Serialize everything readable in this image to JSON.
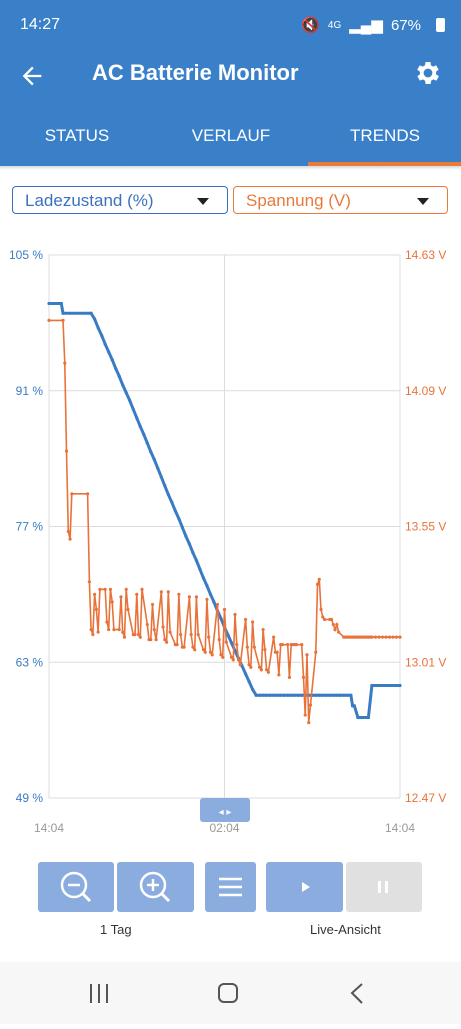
{
  "status": {
    "time": "14:27",
    "network": "4G",
    "battery": "67%"
  },
  "app": {
    "title": "AC Batterie Monitor"
  },
  "tabs": [
    {
      "label": "STATUS"
    },
    {
      "label": "VERLAUF"
    },
    {
      "label": "TRENDS"
    }
  ],
  "selects": {
    "left": "Ladezustand (%)",
    "right": "Spannung (V)"
  },
  "chart_data": {
    "type": "line",
    "x_ticks": [
      "14:04",
      "02:04",
      "14:04"
    ],
    "left_axis": {
      "ticks": [
        "105 %",
        "91 %",
        "77 %",
        "63 %",
        "49 %"
      ],
      "ylim": [
        49,
        105
      ]
    },
    "right_axis": {
      "ticks": [
        "14.63 V",
        "14.09 V",
        "13.55 V",
        "13.01 V",
        "12.47 V"
      ],
      "ylim": [
        12.47,
        14.63
      ]
    },
    "series": [
      {
        "axis": "left",
        "color": "#3a7cc3",
        "x": [
          0,
          3.5,
          4,
          12,
          13,
          14,
          15,
          16,
          17,
          18,
          19,
          20,
          21,
          22,
          23,
          24,
          25,
          26,
          27,
          28,
          29,
          30,
          31,
          32,
          33,
          34,
          35,
          36,
          37,
          38,
          39,
          40,
          41,
          42,
          43,
          44,
          45,
          46,
          47,
          48,
          49,
          50,
          51,
          52,
          53,
          54,
          55,
          56,
          57,
          58,
          59,
          60,
          61,
          62,
          63,
          64,
          65,
          66,
          67,
          68,
          69,
          70,
          71,
          72,
          73,
          74,
          75,
          76,
          77,
          78,
          79,
          80,
          81,
          82,
          83,
          84,
          85,
          86,
          86.5,
          87,
          88,
          88.5,
          89,
          91,
          92,
          100
        ],
        "values": [
          100,
          100,
          99,
          99,
          98.4,
          97.5,
          96.7,
          95.8,
          95,
          94.2,
          93.3,
          92.5,
          91.6,
          90.8,
          90,
          89.1,
          88.2,
          87.3,
          86.5,
          85.6,
          84.7,
          83.9,
          83,
          82.1,
          81.2,
          80.3,
          79.5,
          78.6,
          77.8,
          76.9,
          76,
          75.2,
          74.3,
          73.5,
          72.6,
          71.7,
          70.9,
          70,
          69.2,
          68.3,
          67.5,
          66.6,
          65.8,
          65,
          64.2,
          63.4,
          62.6,
          61.8,
          61,
          60.2,
          59.6,
          59.6,
          59.6,
          59.6,
          59.6,
          59.6,
          59.6,
          59.6,
          59.6,
          59.6,
          59.6,
          59.6,
          59.6,
          59.6,
          59.6,
          59.6,
          59.6,
          59.6,
          59.6,
          59.6,
          59.6,
          59.6,
          59.6,
          59.6,
          59.6,
          59.6,
          59.6,
          59.6,
          58.5,
          58.5,
          57.3,
          57.3,
          57.3,
          57.3,
          60.6,
          60.6
        ]
      },
      {
        "axis": "right",
        "color": "#e8733a",
        "x": [
          0,
          4,
          4.5,
          5,
          5.5,
          6,
          6.5,
          11,
          11.5,
          12,
          12.5,
          13,
          13.5,
          14,
          14.5,
          16,
          16.5,
          17,
          17.5,
          18,
          18.5,
          20,
          20.5,
          21,
          21.5,
          22,
          22.5,
          24,
          24.5,
          25,
          25.5,
          26,
          26.5,
          28,
          28.5,
          29,
          29.5,
          30,
          30.5,
          32,
          32.5,
          33,
          33.5,
          34,
          34.5,
          36,
          36.5,
          37,
          37.5,
          38,
          38.5,
          40,
          40.5,
          41,
          41.5,
          42,
          42.5,
          44,
          44.5,
          45,
          45.5,
          46,
          46.5,
          48,
          48.5,
          49,
          49.5,
          50,
          50.5,
          52,
          52.5,
          53,
          53.5,
          54,
          54.5,
          56,
          56.5,
          57,
          57.5,
          58,
          58.5,
          60,
          60.5,
          61,
          61.5,
          62,
          62.5,
          64,
          64.5,
          65,
          65.5,
          66,
          66.5,
          68,
          68.5,
          69,
          69.5,
          70,
          70.5,
          72,
          72.5,
          73,
          73.5,
          74,
          74.5,
          76,
          76.5,
          77,
          77.5,
          78,
          78.5,
          80,
          80.5,
          81,
          81.5,
          82,
          82.5,
          84,
          84.5,
          85,
          85.5,
          86,
          86.5,
          87,
          87.5,
          88,
          88.5,
          89,
          89.5,
          90,
          90.5,
          91,
          91.5,
          92,
          93,
          94,
          95,
          96,
          97,
          98,
          99,
          100
        ],
        "values": [
          14.37,
          14.37,
          14.2,
          13.85,
          13.53,
          13.5,
          13.68,
          13.68,
          13.33,
          13.14,
          13.12,
          13.28,
          13.22,
          13.13,
          13.3,
          13.3,
          13.17,
          13.14,
          13.3,
          13.25,
          13.14,
          13.14,
          13.27,
          13.13,
          13.11,
          13.3,
          13.22,
          13.12,
          13.12,
          13.28,
          13.12,
          13.11,
          13.3,
          13.16,
          13.1,
          13.1,
          13.24,
          13.14,
          13.1,
          13.29,
          13.15,
          13.1,
          13.09,
          13.29,
          13.13,
          13.08,
          13.08,
          13.28,
          13.12,
          13.07,
          13.07,
          13.27,
          13.12,
          13.07,
          13.06,
          13.27,
          13.12,
          13.06,
          13.05,
          13.26,
          13.11,
          13.05,
          13.04,
          13.24,
          13.1,
          13.04,
          13.03,
          13.22,
          13.09,
          13.03,
          13.02,
          13.2,
          13.08,
          13.02,
          13.0,
          13.18,
          13.07,
          13.0,
          12.99,
          13.17,
          13.07,
          12.99,
          12.98,
          13.14,
          13.06,
          12.98,
          12.97,
          13.11,
          13.05,
          13.05,
          12.96,
          13.08,
          13.08,
          13.08,
          12.95,
          13.08,
          13.08,
          13.08,
          13.08,
          13.08,
          12.95,
          12.8,
          13.04,
          12.77,
          12.84,
          13.05,
          13.32,
          13.34,
          13.22,
          13.19,
          13.18,
          13.18,
          13.18,
          13.16,
          13.14,
          13.16,
          13.13,
          13.11,
          13.11,
          13.11,
          13.11,
          13.11,
          13.11,
          13.11,
          13.11,
          13.11,
          13.11,
          13.11,
          13.11,
          13.11,
          13.11,
          13.11,
          13.11,
          13.11,
          13.11,
          13.11,
          13.11,
          13.11,
          13.11,
          13.11,
          13.11,
          13.11
        ]
      }
    ]
  },
  "controls": {
    "zoom_label": "1 Tag",
    "live_label": "Live-Ansicht"
  }
}
